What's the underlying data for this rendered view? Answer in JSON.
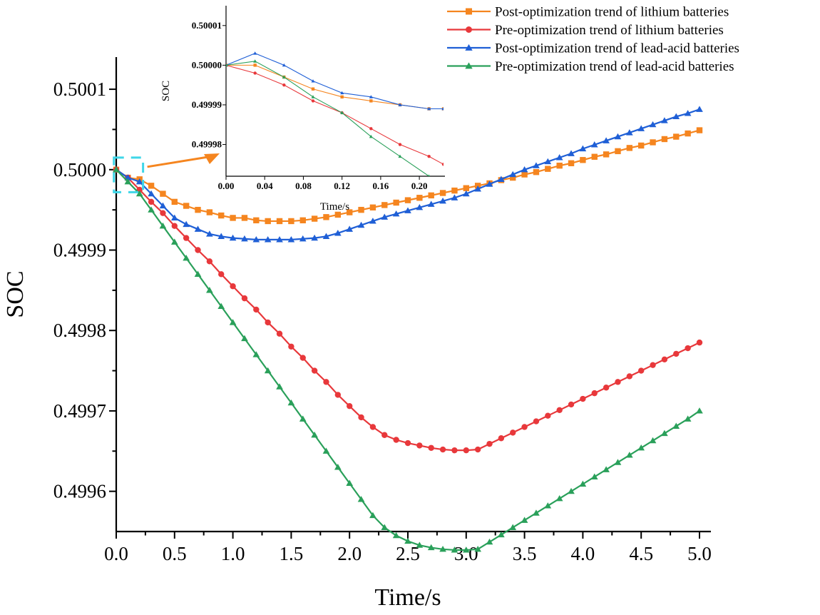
{
  "colors": {
    "lithium_post": "#f5851f",
    "lithium_pre": "#e8383b",
    "lead_post": "#1f5fd6",
    "lead_pre": "#2aa05a",
    "zoom_box": "#3fd6e8",
    "arrow": "#f5851f",
    "axis": "#000000"
  },
  "chart_data": [
    {
      "type": "line",
      "xlabel": "Time/s",
      "ylabel": "SOC",
      "xlim": [
        0.0,
        5.0
      ],
      "ylim": [
        0.49955,
        0.50014
      ],
      "x_ticks": [
        "0.0",
        "0.5",
        "1.0",
        "1.5",
        "2.0",
        "2.5",
        "3.0",
        "3.5",
        "4.0",
        "4.5",
        "5.0"
      ],
      "y_ticks": [
        "0.4996",
        "0.4997",
        "0.4998",
        "0.4999",
        "0.5000",
        "0.5001"
      ],
      "legend_position": "top-right",
      "series": [
        {
          "name": "Post-optimization trend of lithium batteries",
          "color_key": "lithium_post",
          "marker": "square",
          "x": [
            0.0,
            0.1,
            0.2,
            0.3,
            0.4,
            0.5,
            0.6,
            0.7,
            0.8,
            0.9,
            1.0,
            1.1,
            1.2,
            1.3,
            1.4,
            1.5,
            1.6,
            1.7,
            1.8,
            1.9,
            2.0,
            2.1,
            2.2,
            2.3,
            2.4,
            2.5,
            2.6,
            2.7,
            2.8,
            2.9,
            3.0,
            3.1,
            3.2,
            3.3,
            3.4,
            3.5,
            3.6,
            3.7,
            3.8,
            3.9,
            4.0,
            4.1,
            4.2,
            4.3,
            4.4,
            4.5,
            4.6,
            4.7,
            4.8,
            4.9,
            5.0
          ],
          "y": [
            0.5,
            0.49999,
            0.499988,
            0.49998,
            0.49997,
            0.49996,
            0.499955,
            0.49995,
            0.499947,
            0.499943,
            0.49994,
            0.49994,
            0.499937,
            0.499936,
            0.499936,
            0.499936,
            0.499937,
            0.499939,
            0.499941,
            0.499944,
            0.499947,
            0.49995,
            0.499953,
            0.499956,
            0.499959,
            0.499962,
            0.499965,
            0.499968,
            0.499971,
            0.499974,
            0.499977,
            0.49998,
            0.499983,
            0.499987,
            0.49999,
            0.499994,
            0.499997,
            0.500001,
            0.500005,
            0.500008,
            0.500012,
            0.500016,
            0.500019,
            0.500023,
            0.500027,
            0.50003,
            0.500034,
            0.500038,
            0.500041,
            0.500045,
            0.500049
          ]
        },
        {
          "name": "Pre-optimization trend of lithium batteries",
          "color_key": "lithium_pre",
          "marker": "circle",
          "x": [
            0.0,
            0.1,
            0.2,
            0.3,
            0.4,
            0.5,
            0.6,
            0.7,
            0.8,
            0.9,
            1.0,
            1.1,
            1.2,
            1.3,
            1.4,
            1.5,
            1.6,
            1.7,
            1.8,
            1.9,
            2.0,
            2.1,
            2.2,
            2.3,
            2.4,
            2.5,
            2.6,
            2.7,
            2.8,
            2.9,
            3.0,
            3.1,
            3.2,
            3.3,
            3.4,
            3.5,
            3.6,
            3.7,
            3.8,
            3.9,
            4.0,
            4.1,
            4.2,
            4.3,
            4.4,
            4.5,
            4.6,
            4.7,
            4.8,
            4.9,
            5.0
          ],
          "y": [
            0.5,
            0.49999,
            0.499975,
            0.49996,
            0.499946,
            0.49993,
            0.499915,
            0.4999,
            0.499886,
            0.49987,
            0.499855,
            0.49984,
            0.499826,
            0.49981,
            0.499796,
            0.49978,
            0.499766,
            0.49975,
            0.499736,
            0.49972,
            0.499706,
            0.499692,
            0.49968,
            0.49967,
            0.499664,
            0.49966,
            0.499657,
            0.499654,
            0.499652,
            0.499651,
            0.499651,
            0.499652,
            0.499659,
            0.499666,
            0.499673,
            0.49968,
            0.499687,
            0.499694,
            0.499701,
            0.499708,
            0.499715,
            0.499722,
            0.499729,
            0.499736,
            0.499743,
            0.49975,
            0.499757,
            0.499764,
            0.499771,
            0.499778,
            0.499785
          ]
        },
        {
          "name": "Post-optimization trend of lead-acid batteries",
          "color_key": "lead_post",
          "marker": "triangle",
          "x": [
            0.0,
            0.1,
            0.2,
            0.3,
            0.4,
            0.5,
            0.6,
            0.7,
            0.8,
            0.9,
            1.0,
            1.1,
            1.2,
            1.3,
            1.4,
            1.5,
            1.6,
            1.7,
            1.8,
            1.9,
            2.0,
            2.1,
            2.2,
            2.3,
            2.4,
            2.5,
            2.6,
            2.7,
            2.8,
            2.9,
            3.0,
            3.1,
            3.2,
            3.3,
            3.4,
            3.5,
            3.6,
            3.7,
            3.8,
            3.9,
            4.0,
            4.1,
            4.2,
            4.3,
            4.4,
            4.5,
            4.6,
            4.7,
            4.8,
            4.9,
            5.0
          ],
          "y": [
            0.5,
            0.49999,
            0.499985,
            0.49997,
            0.499955,
            0.49994,
            0.499932,
            0.499926,
            0.49992,
            0.499917,
            0.499915,
            0.499914,
            0.499913,
            0.499913,
            0.499913,
            0.499913,
            0.499914,
            0.499915,
            0.499917,
            0.499921,
            0.499926,
            0.499931,
            0.499936,
            0.499941,
            0.499945,
            0.499949,
            0.499953,
            0.499957,
            0.499961,
            0.499965,
            0.49997,
            0.499976,
            0.499982,
            0.499988,
            0.499994,
            0.5,
            0.500005,
            0.50001,
            0.500015,
            0.50002,
            0.500026,
            0.500031,
            0.500036,
            0.500041,
            0.500046,
            0.500051,
            0.500056,
            0.500061,
            0.500066,
            0.50007,
            0.500075
          ]
        },
        {
          "name": "Pre-optimization trend of lead-acid batteries",
          "color_key": "lead_pre",
          "marker": "triangle",
          "x": [
            0.0,
            0.1,
            0.2,
            0.3,
            0.4,
            0.5,
            0.6,
            0.7,
            0.8,
            0.9,
            1.0,
            1.1,
            1.2,
            1.3,
            1.4,
            1.5,
            1.6,
            1.7,
            1.8,
            1.9,
            2.0,
            2.1,
            2.2,
            2.3,
            2.4,
            2.5,
            2.6,
            2.7,
            2.8,
            2.9,
            3.0,
            3.1,
            3.2,
            3.3,
            3.4,
            3.5,
            3.6,
            3.7,
            3.8,
            3.9,
            4.0,
            4.1,
            4.2,
            4.3,
            4.4,
            4.5,
            4.6,
            4.7,
            4.8,
            4.9,
            5.0
          ],
          "y": [
            0.5,
            0.499985,
            0.49997,
            0.49995,
            0.49993,
            0.49991,
            0.49989,
            0.49987,
            0.49985,
            0.49983,
            0.49981,
            0.49979,
            0.49977,
            0.49975,
            0.49973,
            0.49971,
            0.49969,
            0.49967,
            0.49965,
            0.49963,
            0.49961,
            0.49959,
            0.49957,
            0.499555,
            0.499545,
            0.499538,
            0.499533,
            0.49953,
            0.499528,
            0.499527,
            0.499527,
            0.499528,
            0.499537,
            0.499546,
            0.499555,
            0.499564,
            0.499573,
            0.499582,
            0.499591,
            0.4996,
            0.499609,
            0.499618,
            0.499627,
            0.499636,
            0.499645,
            0.499654,
            0.499663,
            0.499672,
            0.499681,
            0.49969,
            0.4997
          ]
        }
      ]
    },
    {
      "type": "line",
      "xlabel": "Time/s",
      "ylabel": "SOC",
      "xlim": [
        0.0,
        0.225
      ],
      "ylim": [
        0.499972,
        0.500015
      ],
      "x_ticks": [
        "0.00",
        "0.04",
        "0.08",
        "0.12",
        "0.16",
        "0.20"
      ],
      "y_ticks": [
        "0.49998",
        "0.49999",
        "0.50000",
        "0.50001"
      ],
      "series": [
        {
          "name": "Post-optimization trend of lithium batteries",
          "color_key": "lithium_post",
          "marker": "square",
          "x": [
            0.0,
            0.03,
            0.06,
            0.09,
            0.12,
            0.15,
            0.18,
            0.21,
            0.225
          ],
          "y": [
            0.5,
            0.5,
            0.499997,
            0.499994,
            0.499992,
            0.499991,
            0.49999,
            0.499989,
            0.499989
          ]
        },
        {
          "name": "Pre-optimization trend of lithium batteries",
          "color_key": "lithium_pre",
          "marker": "circle",
          "x": [
            0.0,
            0.03,
            0.06,
            0.09,
            0.12,
            0.15,
            0.18,
            0.21,
            0.225
          ],
          "y": [
            0.5,
            0.499998,
            0.499995,
            0.499991,
            0.499988,
            0.499984,
            0.49998,
            0.499977,
            0.499975
          ]
        },
        {
          "name": "Post-optimization trend of lead-acid batteries",
          "color_key": "lead_post",
          "marker": "triangle",
          "x": [
            0.0,
            0.03,
            0.06,
            0.09,
            0.12,
            0.15,
            0.18,
            0.21,
            0.225
          ],
          "y": [
            0.5,
            0.500003,
            0.5,
            0.499996,
            0.499993,
            0.499992,
            0.49999,
            0.499989,
            0.499989
          ]
        },
        {
          "name": "Pre-optimization trend of lead-acid batteries",
          "color_key": "lead_pre",
          "marker": "triangle",
          "x": [
            0.0,
            0.03,
            0.06,
            0.09,
            0.12,
            0.15,
            0.18,
            0.21,
            0.225
          ],
          "y": [
            0.5,
            0.500001,
            0.499997,
            0.499992,
            0.499988,
            0.499982,
            0.499977,
            0.499972,
            0.49997
          ]
        }
      ]
    }
  ]
}
